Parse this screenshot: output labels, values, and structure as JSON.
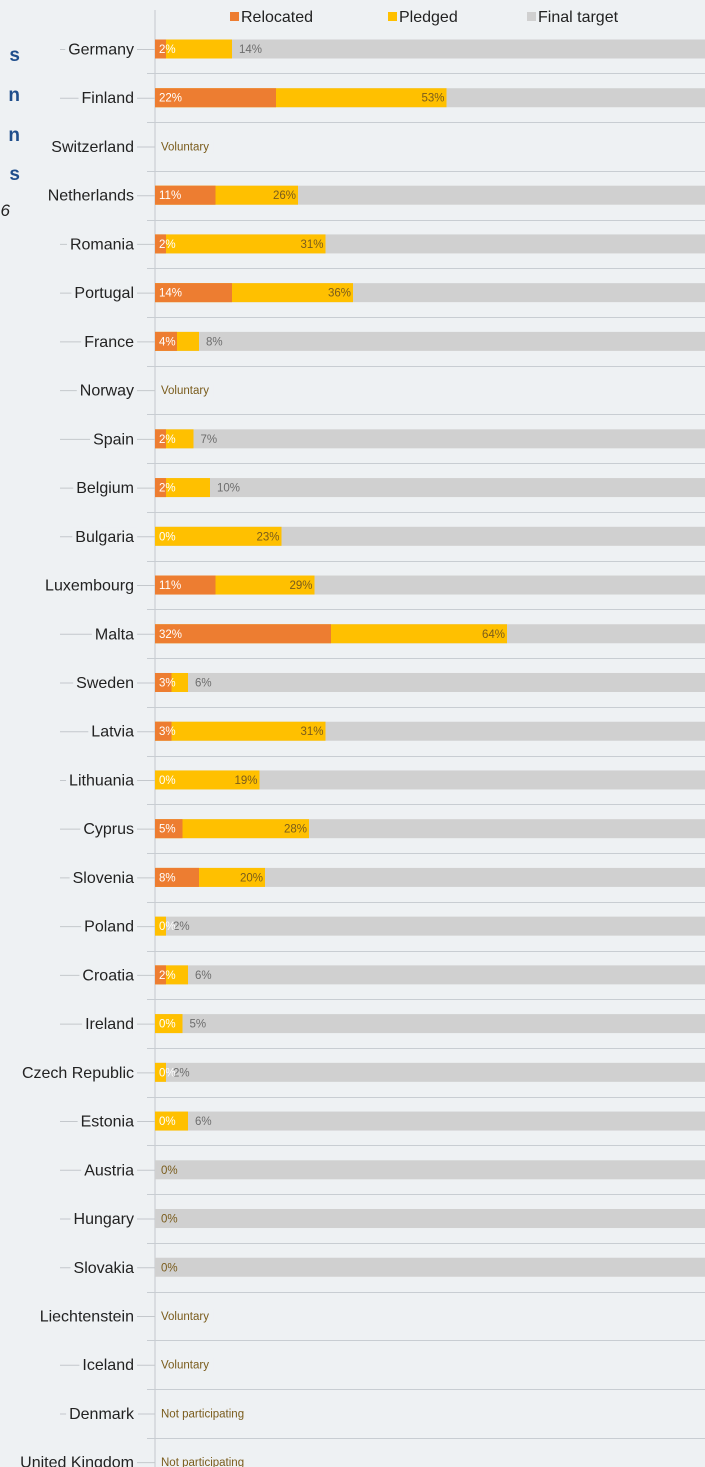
{
  "partial_title": [
    "s",
    "n",
    "n",
    "s"
  ],
  "partial_subtitle": "6",
  "chart_data": {
    "type": "bar",
    "orientation": "horizontal",
    "stacking": "overlapping",
    "legend_position": "top",
    "x_range": [
      0,
      100
    ],
    "series": [
      {
        "name": "Relocated",
        "color": "#ed7d31"
      },
      {
        "name": "Pledged",
        "color": "#ffc000"
      },
      {
        "name": "Final target",
        "color": "#d0d0d0"
      }
    ],
    "rows": [
      {
        "country": "Germany",
        "relocated": 2,
        "pledged": 14,
        "relocated_label": "2%",
        "pledged_label": "14%"
      },
      {
        "country": "Finland",
        "relocated": 22,
        "pledged": 53,
        "relocated_label": "22%",
        "pledged_label": "53%"
      },
      {
        "country": "Switzerland",
        "note": "Voluntary"
      },
      {
        "country": "Netherlands",
        "relocated": 11,
        "pledged": 26,
        "relocated_label": "11%",
        "pledged_label": "26%"
      },
      {
        "country": "Romania",
        "relocated": 2,
        "pledged": 31,
        "relocated_label": "2%",
        "pledged_label": "31%"
      },
      {
        "country": "Portugal",
        "relocated": 14,
        "pledged": 36,
        "relocated_label": "14%",
        "pledged_label": "36%"
      },
      {
        "country": "France",
        "relocated": 4,
        "pledged": 8,
        "relocated_label": "4%",
        "pledged_label": "8%"
      },
      {
        "country": "Norway",
        "note": "Voluntary"
      },
      {
        "country": "Spain",
        "relocated": 2,
        "pledged": 7,
        "relocated_label": "2%",
        "pledged_label": "7%"
      },
      {
        "country": "Belgium",
        "relocated": 2,
        "pledged": 10,
        "relocated_label": "2%",
        "pledged_label": "10%"
      },
      {
        "country": "Bulgaria",
        "relocated": 0,
        "pledged": 23,
        "relocated_label": "0%",
        "pledged_label": "23%"
      },
      {
        "country": "Luxembourg",
        "relocated": 11,
        "pledged": 29,
        "relocated_label": "11%",
        "pledged_label": "29%"
      },
      {
        "country": "Malta",
        "relocated": 32,
        "pledged": 64,
        "relocated_label": "32%",
        "pledged_label": "64%"
      },
      {
        "country": "Sweden",
        "relocated": 3,
        "pledged": 6,
        "relocated_label": "3%",
        "pledged_label": "6%"
      },
      {
        "country": "Latvia",
        "relocated": 3,
        "pledged": 31,
        "relocated_label": "3%",
        "pledged_label": "31%"
      },
      {
        "country": "Lithuania",
        "relocated": 0,
        "pledged": 19,
        "relocated_label": "0%",
        "pledged_label": "19%"
      },
      {
        "country": "Cyprus",
        "relocated": 5,
        "pledged": 28,
        "relocated_label": "5%",
        "pledged_label": "28%"
      },
      {
        "country": "Slovenia",
        "relocated": 8,
        "pledged": 20,
        "relocated_label": "8%",
        "pledged_label": "20%"
      },
      {
        "country": "Poland",
        "relocated": 0,
        "pledged": 2,
        "relocated_label": "0%",
        "pledged_label": "2%"
      },
      {
        "country": "Croatia",
        "relocated": 2,
        "pledged": 6,
        "relocated_label": "2%",
        "pledged_label": "6%"
      },
      {
        "country": "Ireland",
        "relocated": 0,
        "pledged": 5,
        "relocated_label": "0%",
        "pledged_label": "5%"
      },
      {
        "country": "Czech Republic",
        "relocated": 0,
        "pledged": 2,
        "relocated_label": "0%",
        "pledged_label": "2%"
      },
      {
        "country": "Estonia",
        "relocated": 0,
        "pledged": 6,
        "relocated_label": "0%",
        "pledged_label": "6%"
      },
      {
        "country": "Austria",
        "relocated": 0,
        "pledged": 0,
        "pledged_label": "0%"
      },
      {
        "country": "Hungary",
        "relocated": 0,
        "pledged": 0,
        "pledged_label": "0%"
      },
      {
        "country": "Slovakia",
        "relocated": 0,
        "pledged": 0,
        "pledged_label": "0%"
      },
      {
        "country": "Liechtenstein",
        "note": "Voluntary"
      },
      {
        "country": "Iceland",
        "note": "Voluntary"
      },
      {
        "country": "Denmark",
        "note": "Not participating"
      },
      {
        "country": "United Kingdom",
        "note": "Not participating"
      }
    ]
  }
}
